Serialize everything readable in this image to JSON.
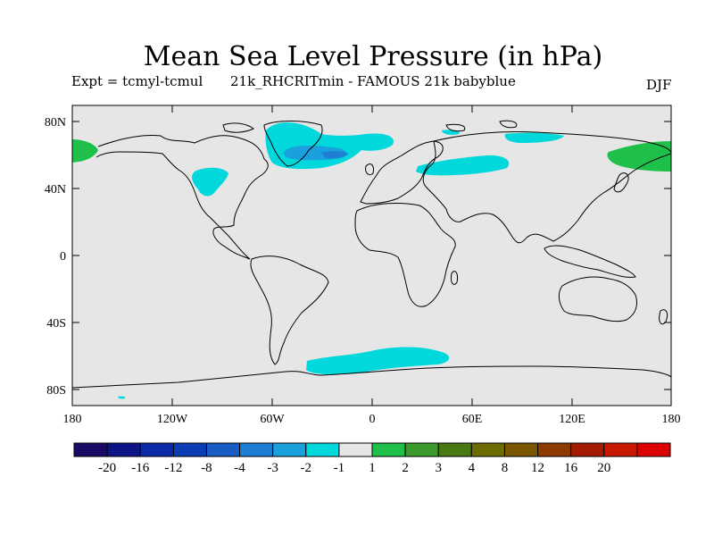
{
  "title": "Mean Sea Level Pressure (in hPa)",
  "expt_label": "Expt = tcmyl-tcmul",
  "run_label": "21k_RHCRITmin - FAMOUS 21k babyblue",
  "season": "DJF",
  "map": {
    "background_color": "#e6e6e6",
    "lat_ticks": [
      "80N",
      "40N",
      "0",
      "40S",
      "80S"
    ],
    "lon_ticks": [
      "180",
      "120W",
      "60W",
      "0",
      "60E",
      "120E",
      "180"
    ]
  },
  "colorbar": {
    "colors": [
      "#1a0a66",
      "#0d1486",
      "#0a2aa6",
      "#0a3cb4",
      "#1a5cc6",
      "#1e7ed4",
      "#1aa0dc",
      "#00d8dc",
      "#e6e6e6",
      "#1ec04a",
      "#3c9a2c",
      "#4a7814",
      "#6c6c00",
      "#7a5600",
      "#8c3a00",
      "#a41c00",
      "#c81800",
      "#dc0000"
    ],
    "labels": [
      "-20",
      "-16",
      "-12",
      "-8",
      "-4",
      "-3",
      "-2",
      "-1",
      "1",
      "2",
      "3",
      "4",
      "8",
      "12",
      "16",
      "20"
    ]
  },
  "legend_colors": {
    "weak_negative": "#00d8dc",
    "moderate_negative": "#1aa0dc",
    "weak_positive": "#1ec04a",
    "moderate_positive": "#3c9a2c"
  }
}
